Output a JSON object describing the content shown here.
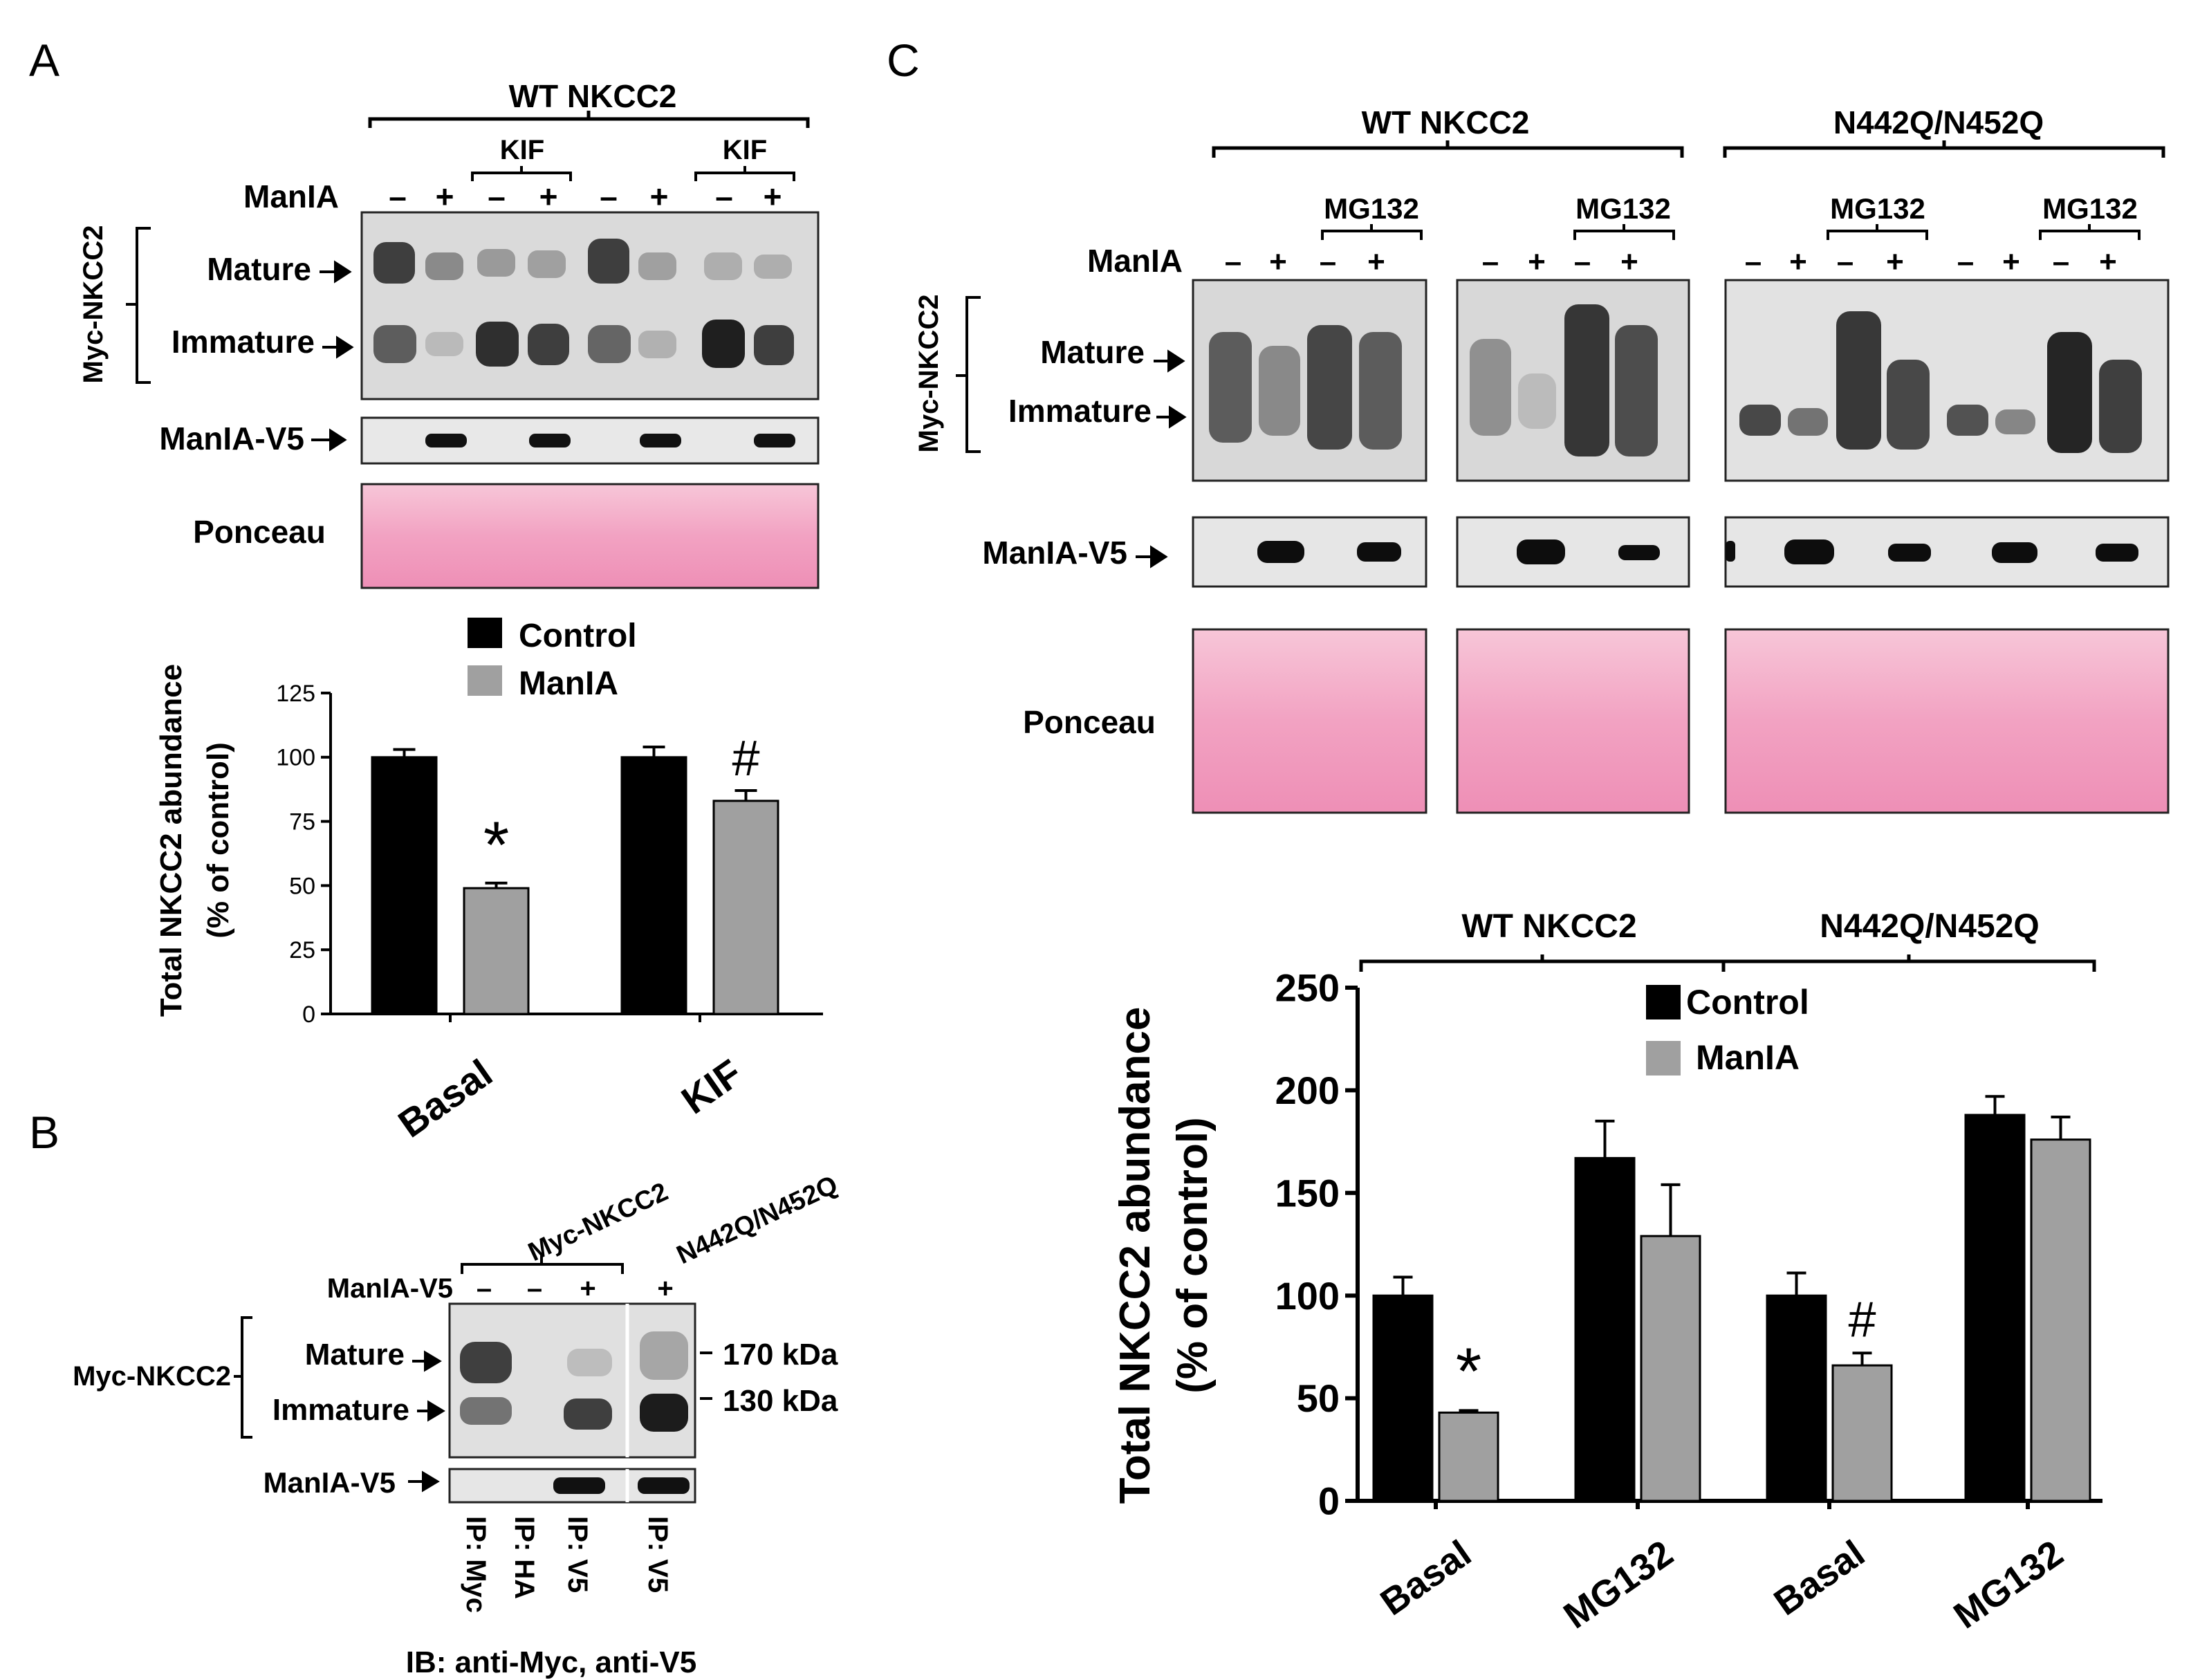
{
  "panel_labels": {
    "a": "A",
    "b": "B",
    "c": "C"
  },
  "panelA": {
    "group_label": "WT NKCC2",
    "kif_label": "KIF",
    "manIA_row_label": "ManIA",
    "lane_signs": [
      "–",
      "+",
      "–",
      "+",
      "–",
      "+",
      "–",
      "+"
    ],
    "bracket_label": "Myc-NKCC2",
    "mature": "Mature",
    "immature": "Immature",
    "v5_label": "ManIA-V5",
    "ponceau": "Ponceau"
  },
  "panelB": {
    "top_label": "Myc-NKCC2",
    "mutant_label": "N442Q/N452Q",
    "manIA_label": "ManIA-V5",
    "lane_signs": [
      "–",
      "–",
      "+",
      "+"
    ],
    "bracket_label": "Myc-NKCC2",
    "mature": "Mature",
    "immature": "Immature",
    "marker_170": "170 kDa",
    "marker_130": "130 kDa",
    "v5_label": "ManIA-V5",
    "ip_labels": [
      "IP: Myc",
      "IP: HA",
      "IP: V5",
      "IP: V5"
    ],
    "ib_label": "IB: anti-Myc, anti-V5"
  },
  "panelC": {
    "wt_label": "WT NKCC2",
    "mut_label": "N442Q/N452Q",
    "mg132_label": "MG132",
    "manIA_row_label": "ManIA",
    "lane_signs": [
      "–",
      "+",
      "–",
      "+"
    ],
    "bracket_label": "Myc-NKCC2",
    "mature": "Mature",
    "immature": "Immature",
    "v5_label": "ManIA-V5",
    "ponceau": "Ponceau"
  },
  "colors": {
    "control": "#000000",
    "manIA": "#a0a0a0",
    "ponceau": "#f2a6c4"
  },
  "chart_data": [
    {
      "type": "bar",
      "panel": "A",
      "categories": [
        "Basal",
        "KIF"
      ],
      "series": [
        {
          "name": "Control",
          "values": [
            100,
            100
          ],
          "errors": [
            3,
            4
          ]
        },
        {
          "name": "ManIA",
          "values": [
            49,
            83
          ],
          "errors": [
            2,
            4
          ]
        }
      ],
      "ylabel_line1": "Total NKCC2 abundance",
      "ylabel_line2": "(% of control)",
      "ylim": [
        0,
        125
      ],
      "yticks": [
        0,
        25,
        50,
        75,
        100,
        125
      ],
      "annotations": [
        {
          "category": "Basal",
          "series": "ManIA",
          "text": "*"
        },
        {
          "category": "KIF",
          "series": "ManIA",
          "text": "#"
        }
      ]
    },
    {
      "type": "bar",
      "panel": "C",
      "group_labels": [
        "WT NKCC2",
        "N442Q/N452Q"
      ],
      "categories": [
        "Basal",
        "MG132",
        "Basal",
        "MG132"
      ],
      "series": [
        {
          "name": "Control",
          "values": [
            100,
            167,
            100,
            188
          ],
          "errors": [
            9,
            18,
            11,
            9
          ]
        },
        {
          "name": "ManIA",
          "values": [
            43,
            129,
            66,
            176
          ],
          "errors": [
            1,
            25,
            6,
            11
          ]
        }
      ],
      "ylabel_line1": "Total NKCC2 abundance",
      "ylabel_line2": "(% of control)",
      "ylim": [
        0,
        250
      ],
      "yticks": [
        0,
        50,
        100,
        150,
        200,
        250
      ],
      "annotations": [
        {
          "category_index": 0,
          "series": "ManIA",
          "text": "*"
        },
        {
          "category_index": 2,
          "series": "ManIA",
          "text": "#"
        }
      ]
    }
  ]
}
